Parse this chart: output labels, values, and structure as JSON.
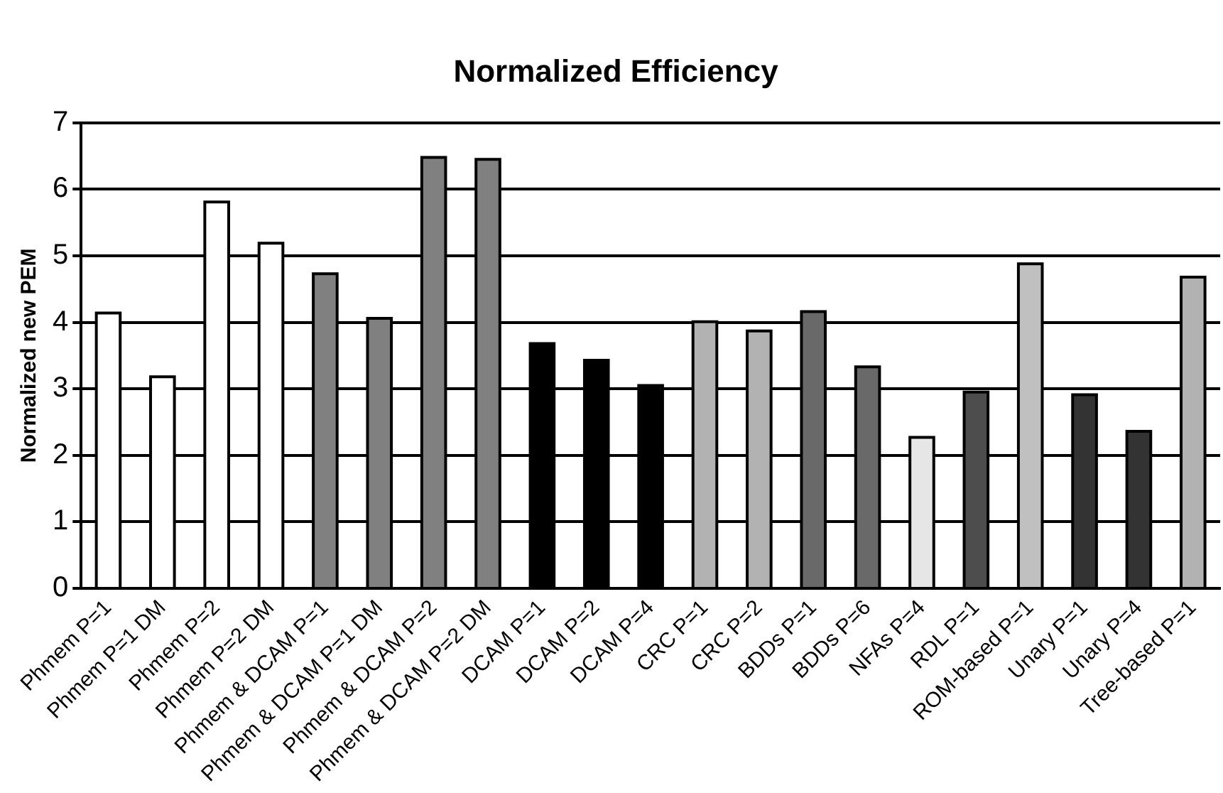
{
  "chart_data": {
    "type": "bar",
    "title": "Normalized Efficiency",
    "ylabel": "Normalized new PEM",
    "categories": [
      "Phmem P=1",
      "Phmem P=1 DM",
      "Phmem P=2",
      "Phmem P=2 DM",
      "Phmem & DCAM P=1",
      "Phmem & DCAM P=1 DM",
      "Phmem & DCAM P=2",
      "Phmem & DCAM P=2 DM",
      "DCAM P=1",
      "DCAM P=2",
      "DCAM P=4",
      "CRC P=1",
      "CRC P=2",
      "BDDs P=1",
      "BDDs P=6",
      "NFAs P=4",
      "RDL P=1",
      "ROM-based P=1",
      "Unary P=1",
      "Unary P=4",
      "Tree-based P=1"
    ],
    "values": [
      4.14,
      3.18,
      5.81,
      5.19,
      4.73,
      4.06,
      6.48,
      6.45,
      3.68,
      3.43,
      3.05,
      4.01,
      3.87,
      4.16,
      3.33,
      2.27,
      2.95,
      4.88,
      2.91,
      2.36,
      4.68
    ],
    "colors": [
      "#ffffff",
      "#ffffff",
      "#ffffff",
      "#ffffff",
      "#808080",
      "#808080",
      "#808080",
      "#808080",
      "#000000",
      "#000000",
      "#000000",
      "#b2b2b2",
      "#b2b2b2",
      "#696969",
      "#696969",
      "#e6e6e6",
      "#4d4d4d",
      "#c0c0c0",
      "#333333",
      "#333333",
      "#b2b2b2"
    ],
    "ylim": [
      0,
      7
    ],
    "yticks": [
      0,
      1,
      2,
      3,
      4,
      5,
      6,
      7
    ],
    "grid": "y",
    "legend": false
  }
}
